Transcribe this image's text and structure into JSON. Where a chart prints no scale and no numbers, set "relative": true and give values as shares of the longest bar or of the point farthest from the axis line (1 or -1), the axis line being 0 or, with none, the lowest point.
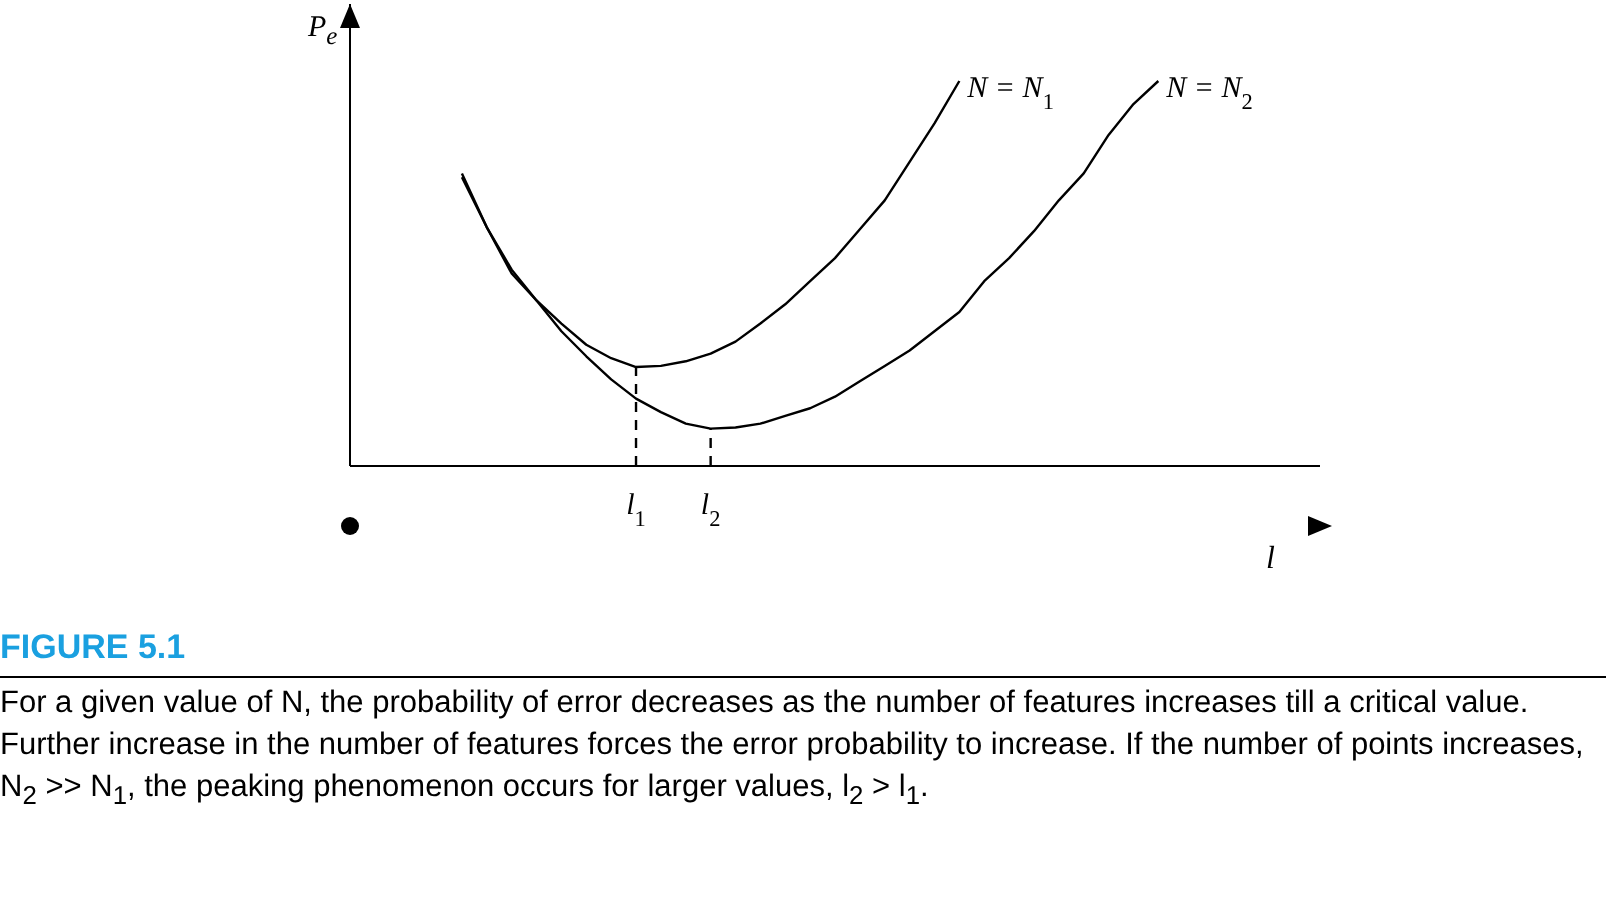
{
  "chart_data": {
    "type": "line",
    "title": "FIGURE 5.1",
    "xlabel": "l",
    "ylabel": "P$_{e}$",
    "relative": true,
    "marker": "none",
    "categories": [
      null,
      null,
      null,
      null,
      null,
      null,
      null,
      null,
      null,
      null,
      null,
      "l$_{1}$",
      null,
      null,
      "l$_{2}$",
      null,
      null,
      null,
      null,
      null,
      null,
      null,
      null,
      null,
      null,
      null,
      null,
      null,
      null,
      null,
      null,
      null,
      null,
      null,
      null,
      null,
      null,
      null,
      null
    ],
    "series": [
      {
        "name": "N = N$_{1}$",
        "color": "#000000",
        "line_style": "solid",
        "values": [
          null,
          null,
          null,
          null,
          0.75,
          0.62,
          0.5,
          0.43,
          0.37,
          0.315,
          0.28,
          0.257,
          0.26,
          0.272,
          0.292,
          0.323,
          0.37,
          0.42,
          0.48,
          0.54,
          0.615,
          0.69,
          0.79,
          0.89,
          1.0,
          null,
          null,
          null,
          null,
          null,
          null,
          null,
          null,
          null,
          null,
          null,
          null,
          null,
          null
        ]
      },
      {
        "name": "N = N$_{2}$",
        "color": "#000000",
        "line_style": "solid",
        "values": [
          null,
          null,
          null,
          null,
          0.76,
          0.62,
          0.51,
          0.43,
          0.35,
          0.285,
          0.225,
          0.175,
          0.14,
          0.11,
          0.097,
          0.1,
          0.11,
          0.13,
          0.15,
          0.18,
          0.22,
          0.26,
          0.3,
          0.35,
          0.4,
          0.48,
          0.54,
          0.61,
          0.69,
          0.76,
          0.86,
          0.94,
          1.0,
          null,
          null,
          null,
          null,
          null,
          null
        ]
      },
      {
        "color": "#000000",
        "line_style": "dashed",
        "x": [
          "l$_{1}$",
          "l$_{1}$"
        ],
        "values": [
          0,
          0.257
        ]
      },
      {
        "color": "#000000",
        "line_style": "dashed",
        "x": [
          "l$_{2}$",
          "l$_{2}$"
        ],
        "values": [
          0,
          0.097
        ]
      }
    ],
    "annotations": [
      "For a given value of N, the probability of error decreases as the number of features increases till a critical value.  Further increase in the number of features forces the error probability to increase. If the number of points increases, N$_{2}$ >> N$_{1}$, the peaking phenomenon occurs for larger values, l$_{2}$ > l$_{1}$."
    ]
  }
}
